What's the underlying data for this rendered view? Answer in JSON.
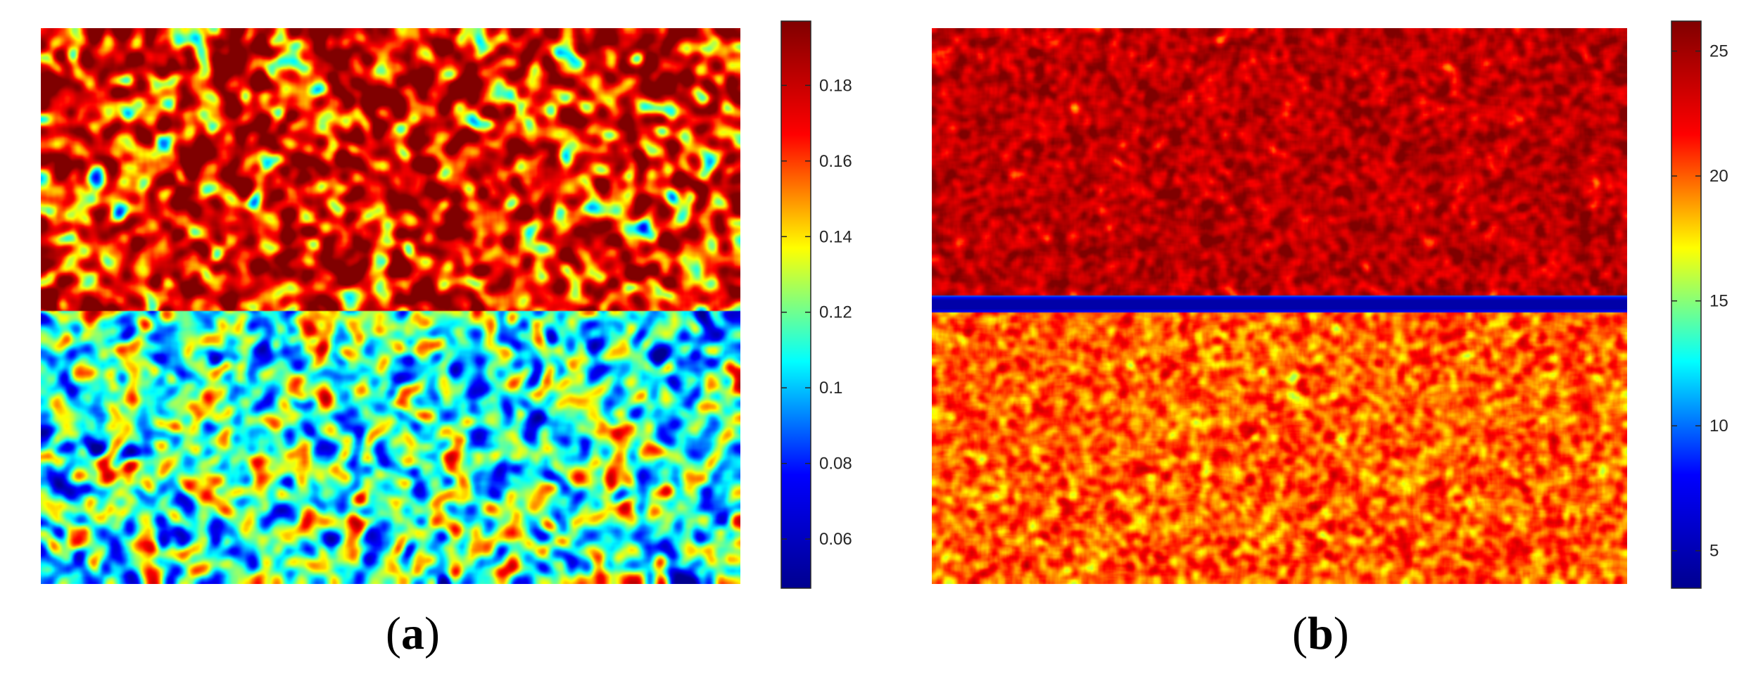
{
  "colormap": [
    "#00008f",
    "#0000ff",
    "#00ffff",
    "#ffff00",
    "#ff0000",
    "#800000"
  ],
  "panels": [
    {
      "label": "a",
      "chart_data": {
        "type": "heatmap",
        "title": "",
        "xlabel": "",
        "ylabel": "",
        "description_values": {
          "top_region_mean": 0.17,
          "bottom_region_mean": 0.115,
          "top_region_spread": 0.025,
          "bottom_region_spread": 0.022
        },
        "colorbar": {
          "range": [
            0.047,
            0.197
          ],
          "ticks": [
            0.06,
            0.08,
            0.1,
            0.12,
            0.14,
            0.16,
            0.18
          ],
          "tick_labels": [
            "0.06",
            "0.08",
            "0.1",
            "0.12",
            "0.14",
            "0.16",
            "0.18"
          ]
        },
        "grid": false,
        "legend": "none"
      }
    },
    {
      "label": "b",
      "chart_data": {
        "type": "heatmap",
        "title": "",
        "xlabel": "",
        "ylabel": "",
        "description_values": {
          "top_region_mean": 24.0,
          "bottom_region_mean": 20.0,
          "interface_value": 4.5,
          "top_region_spread": 1.2,
          "bottom_region_spread": 1.2
        },
        "colorbar": {
          "range": [
            3.5,
            26.2
          ],
          "ticks": [
            5,
            10,
            15,
            20,
            25
          ],
          "tick_labels": [
            "5",
            "10",
            "15",
            "20",
            "25"
          ]
        },
        "grid": false,
        "legend": "none"
      }
    }
  ]
}
